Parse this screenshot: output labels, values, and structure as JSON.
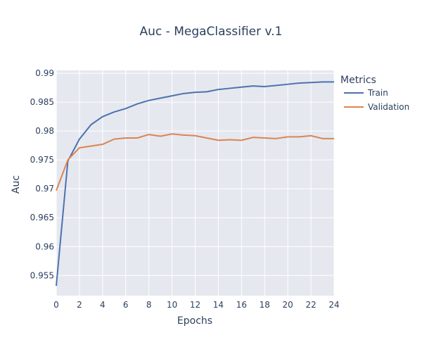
{
  "chart_data": {
    "type": "line",
    "title": "Auc - MegaClassifier v.1",
    "xlabel": "Epochs",
    "ylabel": "Auc",
    "xlim": [
      0,
      24
    ],
    "ylim": [
      0.9515,
      0.9905
    ],
    "xticks": [
      "0",
      "2",
      "4",
      "6",
      "8",
      "10",
      "12",
      "14",
      "16",
      "18",
      "20",
      "22",
      "24"
    ],
    "yticks": [
      "0.955",
      "0.96",
      "0.965",
      "0.97",
      "0.975",
      "0.98",
      "0.985",
      "0.99"
    ],
    "grid": true,
    "legend": {
      "title": "Metrics",
      "position": "right"
    },
    "x": [
      0,
      1,
      2,
      3,
      4,
      5,
      6,
      7,
      8,
      9,
      10,
      11,
      12,
      13,
      14,
      15,
      16,
      17,
      18,
      19,
      20,
      21,
      22,
      23,
      24
    ],
    "series": [
      {
        "name": "Train",
        "color": "#4c72b0",
        "values": [
          0.9532,
          0.9748,
          0.9786,
          0.9811,
          0.9825,
          0.9833,
          0.9839,
          0.9847,
          0.9853,
          0.9857,
          0.9861,
          0.9865,
          0.9867,
          0.9868,
          0.9872,
          0.9874,
          0.9876,
          0.9878,
          0.9877,
          0.9879,
          0.9881,
          0.9883,
          0.9884,
          0.9885,
          0.9885
        ]
      },
      {
        "name": "Validation",
        "color": "#dd8452",
        "values": [
          0.9697,
          0.975,
          0.9771,
          0.9774,
          0.9777,
          0.9786,
          0.9788,
          0.9788,
          0.9794,
          0.9791,
          0.9795,
          0.9793,
          0.9792,
          0.9788,
          0.9784,
          0.9785,
          0.9784,
          0.9789,
          0.9788,
          0.9787,
          0.979,
          0.979,
          0.9792,
          0.9787,
          0.9787
        ]
      }
    ]
  }
}
